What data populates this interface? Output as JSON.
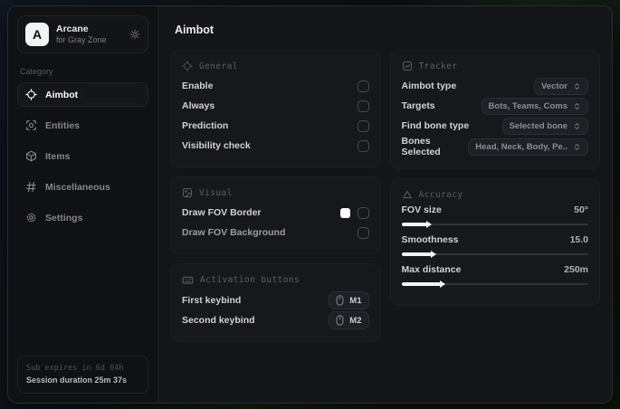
{
  "sidebar": {
    "brand": {
      "initial": "A",
      "name": "Arcane",
      "subtitle": "for Gray Zone"
    },
    "category_label": "Category",
    "items": [
      {
        "label": "Aimbot"
      },
      {
        "label": "Entities"
      },
      {
        "label": "Items"
      },
      {
        "label": "Miscellaneous"
      },
      {
        "label": "Settings"
      }
    ],
    "session": {
      "expires": "Sub expires in 6d 04h",
      "duration": "Session duration 25m 37s"
    }
  },
  "main": {
    "title": "Aimbot",
    "general": {
      "title": "General",
      "rows": [
        {
          "label": "Enable",
          "checked": false
        },
        {
          "label": "Always",
          "checked": false
        },
        {
          "label": "Prediction",
          "checked": false
        },
        {
          "label": "Visibility check",
          "checked": false
        }
      ]
    },
    "visual": {
      "title": "Visual",
      "rows": [
        {
          "label": "Draw FOV Border",
          "swatch": "#ffffff",
          "checked": false
        },
        {
          "label": "Draw FOV Background",
          "checked": false
        }
      ]
    },
    "activation": {
      "title": "Activation buttons",
      "rows": [
        {
          "label": "First keybind",
          "key": "M1"
        },
        {
          "label": "Second keybind",
          "key": "M2"
        }
      ]
    },
    "tracker": {
      "title": "Tracker",
      "rows": [
        {
          "label": "Aimbot type",
          "value": "Vector"
        },
        {
          "label": "Targets",
          "value": "Bots, Teams, Coms"
        },
        {
          "label": "Find bone type",
          "value": "Selected bone"
        },
        {
          "label": "Bones Selected",
          "value": "Head, Neck, Body, Pe.."
        }
      ]
    },
    "accuracy": {
      "title": "Accuracy",
      "sliders": [
        {
          "label": "FOV size",
          "value": "50°",
          "percent": 14
        },
        {
          "label": "Smoothness",
          "value": "15.0",
          "percent": 16
        },
        {
          "label": "Max distance",
          "value": "250m",
          "percent": 21
        }
      ]
    }
  },
  "colors": {
    "swatch_fov_border": "#ffffff",
    "accent_fill": "#f2f3f4",
    "card_bg": "#17181c",
    "window_bg": "#121316"
  }
}
